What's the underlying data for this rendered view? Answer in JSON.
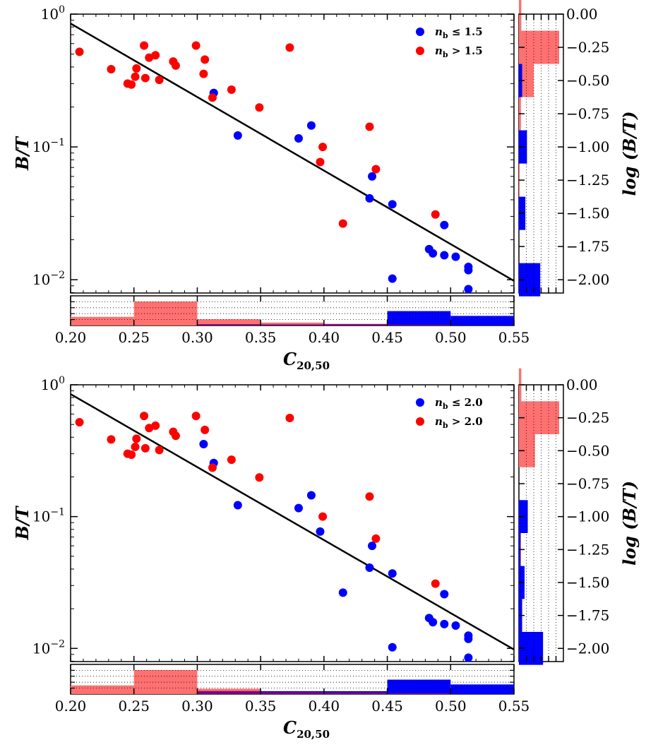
{
  "figure": {
    "description_none": null
  },
  "colors": {
    "blue": "#0000ff",
    "red": "#ff0000",
    "hist_red": "#ff7070",
    "hist_blue": "#0000ff",
    "hist_overlap": "#800080",
    "line": "#000000"
  },
  "chart_data": [
    {
      "type": "scatter",
      "xlabel": "C_{20,50}",
      "ylabel": "B/T",
      "right_label": "log (B/T)",
      "xlim": [
        0.2,
        0.55
      ],
      "ylim_log10": [
        -2.1,
        0.0
      ],
      "xticks": [
        "0.20",
        "0.25",
        "0.30",
        "0.35",
        "0.40",
        "0.45",
        "0.50",
        "0.55"
      ],
      "yticks": [
        {
          "base": "10",
          "exp": "0"
        },
        {
          "base": "10",
          "exp": "−1"
        },
        {
          "base": "10",
          "exp": "−2"
        }
      ],
      "right_ticks": [
        "0.00",
        "−0.25",
        "−0.50",
        "−0.75",
        "−1.00",
        "−1.25",
        "−1.50",
        "−1.75",
        "−2.00"
      ],
      "fit_line": {
        "x": [
          0.2,
          0.55
        ],
        "y": [
          0.85,
          0.0098
        ]
      },
      "legend": [
        {
          "name": "blue",
          "label": "n_b ≤ 1.5",
          "sym": "≤",
          "val": "1.5"
        },
        {
          "name": "red",
          "label": "n_b > 1.5",
          "sym": ">",
          "val": "1.5"
        }
      ],
      "series": [
        {
          "name": "blue",
          "color": "#0000ff",
          "points": [
            [
              0.313,
              0.255
            ],
            [
              0.332,
              0.122
            ],
            [
              0.38,
              0.116
            ],
            [
              0.39,
              0.145
            ],
            [
              0.438,
              0.06
            ],
            [
              0.436,
              0.041
            ],
            [
              0.454,
              0.037
            ],
            [
              0.454,
              0.0102
            ],
            [
              0.483,
              0.017
            ],
            [
              0.486,
              0.0158
            ],
            [
              0.495,
              0.0153
            ],
            [
              0.504,
              0.0149
            ],
            [
              0.495,
              0.0258
            ],
            [
              0.514,
              0.0125
            ],
            [
              0.514,
              0.0118
            ],
            [
              0.514,
              0.0085
            ]
          ]
        },
        {
          "name": "red",
          "color": "#ff0000",
          "points": [
            [
              0.207,
              0.52
            ],
            [
              0.232,
              0.385
            ],
            [
              0.245,
              0.3
            ],
            [
              0.248,
              0.295
            ],
            [
              0.251,
              0.338
            ],
            [
              0.252,
              0.39
            ],
            [
              0.258,
              0.58
            ],
            [
              0.259,
              0.33
            ],
            [
              0.262,
              0.47
            ],
            [
              0.267,
              0.49
            ],
            [
              0.27,
              0.32
            ],
            [
              0.281,
              0.44
            ],
            [
              0.283,
              0.41
            ],
            [
              0.299,
              0.58
            ],
            [
              0.305,
              0.355
            ],
            [
              0.306,
              0.455
            ],
            [
              0.312,
              0.235
            ],
            [
              0.327,
              0.27
            ],
            [
              0.349,
              0.198
            ],
            [
              0.373,
              0.56
            ],
            [
              0.397,
              0.077
            ],
            [
              0.399,
              0.1
            ],
            [
              0.415,
              0.0265
            ],
            [
              0.436,
              0.142
            ],
            [
              0.441,
              0.068
            ],
            [
              0.488,
              0.031
            ]
          ]
        }
      ],
      "hist_x": {
        "red": [
          {
            "bin": [
              0.2,
              0.25
            ],
            "v": 0.36
          },
          {
            "bin": [
              0.25,
              0.3
            ],
            "v": 1.0
          },
          {
            "bin": [
              0.3,
              0.35
            ],
            "v": 0.26
          },
          {
            "bin": [
              0.35,
              0.4
            ],
            "v": 0.12
          },
          {
            "bin": [
              0.4,
              0.45
            ],
            "v": 0.07
          },
          {
            "bin": [
              0.45,
              0.5
            ],
            "v": 0.03
          },
          {
            "bin": [
              0.5,
              0.55
            ],
            "v": 0.0
          }
        ],
        "blue": [
          {
            "bin": [
              0.2,
              0.25
            ],
            "v": 0.0
          },
          {
            "bin": [
              0.25,
              0.3
            ],
            "v": 0.0
          },
          {
            "bin": [
              0.3,
              0.35
            ],
            "v": 0.05
          },
          {
            "bin": [
              0.35,
              0.4
            ],
            "v": 0.04
          },
          {
            "bin": [
              0.4,
              0.45
            ],
            "v": 0.05
          },
          {
            "bin": [
              0.45,
              0.5
            ],
            "v": 0.6
          },
          {
            "bin": [
              0.5,
              0.55
            ],
            "v": 0.4
          }
        ]
      },
      "hist_y": {
        "red": [
          {
            "bin": [
              -0.125,
              0.125
            ],
            "v": 0.06
          },
          {
            "bin": [
              -0.375,
              -0.125
            ],
            "v": 1.0
          },
          {
            "bin": [
              -0.625,
              -0.375
            ],
            "v": 0.37
          },
          {
            "bin": [
              -0.875,
              -0.625
            ],
            "v": 0.05
          },
          {
            "bin": [
              -1.125,
              -0.875
            ],
            "v": 0.17
          },
          {
            "bin": [
              -1.375,
              -1.125
            ],
            "v": 0.02
          },
          {
            "bin": [
              -1.625,
              -1.375
            ],
            "v": 0.09
          },
          {
            "bin": [
              -1.875,
              -1.625
            ],
            "v": 0.0
          },
          {
            "bin": [
              -2.125,
              -1.875
            ],
            "v": 0.0
          }
        ],
        "blue": [
          {
            "bin": [
              -0.125,
              0.125
            ],
            "v": 0.0
          },
          {
            "bin": [
              -0.375,
              -0.125
            ],
            "v": 0.0
          },
          {
            "bin": [
              -0.625,
              -0.375
            ],
            "v": 0.08
          },
          {
            "bin": [
              -0.875,
              -0.625
            ],
            "v": 0.0
          },
          {
            "bin": [
              -1.125,
              -0.875
            ],
            "v": 0.2
          },
          {
            "bin": [
              -1.375,
              -1.125
            ],
            "v": 0.0
          },
          {
            "bin": [
              -1.625,
              -1.375
            ],
            "v": 0.16
          },
          {
            "bin": [
              -1.875,
              -1.625
            ],
            "v": 0.0
          },
          {
            "bin": [
              -2.125,
              -1.875
            ],
            "v": 0.53
          }
        ]
      }
    },
    {
      "type": "scatter",
      "xlabel": "C_{20,50}",
      "ylabel": "B/T",
      "right_label": "log (B/T)",
      "xlim": [
        0.2,
        0.55
      ],
      "ylim_log10": [
        -2.1,
        0.0
      ],
      "xticks": [
        "0.20",
        "0.25",
        "0.30",
        "0.35",
        "0.40",
        "0.45",
        "0.50",
        "0.55"
      ],
      "yticks": [
        {
          "base": "10",
          "exp": "0"
        },
        {
          "base": "10",
          "exp": "−1"
        },
        {
          "base": "10",
          "exp": "−2"
        }
      ],
      "right_ticks": [
        "0.00",
        "−0.25",
        "−0.50",
        "−0.75",
        "−1.00",
        "−1.25",
        "−1.50",
        "−1.75",
        "−2.00"
      ],
      "fit_line": {
        "x": [
          0.2,
          0.55
        ],
        "y": [
          0.85,
          0.0098
        ]
      },
      "legend": [
        {
          "name": "blue",
          "label": "n_b ≤ 2.0",
          "sym": "≤",
          "val": "2.0"
        },
        {
          "name": "red",
          "label": "n_b > 2.0",
          "sym": ">",
          "val": "2.0"
        }
      ],
      "series": [
        {
          "name": "blue",
          "color": "#0000ff",
          "points": [
            [
              0.305,
              0.355
            ],
            [
              0.313,
              0.255
            ],
            [
              0.332,
              0.122
            ],
            [
              0.38,
              0.116
            ],
            [
              0.39,
              0.145
            ],
            [
              0.397,
              0.077
            ],
            [
              0.415,
              0.0265
            ],
            [
              0.438,
              0.06
            ],
            [
              0.436,
              0.041
            ],
            [
              0.454,
              0.037
            ],
            [
              0.454,
              0.0102
            ],
            [
              0.483,
              0.017
            ],
            [
              0.486,
              0.0158
            ],
            [
              0.495,
              0.0153
            ],
            [
              0.504,
              0.0149
            ],
            [
              0.495,
              0.0258
            ],
            [
              0.514,
              0.0125
            ],
            [
              0.514,
              0.0118
            ],
            [
              0.514,
              0.0085
            ]
          ]
        },
        {
          "name": "red",
          "color": "#ff0000",
          "points": [
            [
              0.207,
              0.52
            ],
            [
              0.232,
              0.385
            ],
            [
              0.245,
              0.3
            ],
            [
              0.248,
              0.295
            ],
            [
              0.251,
              0.338
            ],
            [
              0.252,
              0.39
            ],
            [
              0.258,
              0.58
            ],
            [
              0.259,
              0.33
            ],
            [
              0.262,
              0.47
            ],
            [
              0.267,
              0.49
            ],
            [
              0.27,
              0.32
            ],
            [
              0.281,
              0.44
            ],
            [
              0.283,
              0.41
            ],
            [
              0.299,
              0.58
            ],
            [
              0.306,
              0.455
            ],
            [
              0.312,
              0.235
            ],
            [
              0.327,
              0.27
            ],
            [
              0.349,
              0.198
            ],
            [
              0.373,
              0.56
            ],
            [
              0.399,
              0.1
            ],
            [
              0.436,
              0.142
            ],
            [
              0.441,
              0.068
            ],
            [
              0.488,
              0.031
            ]
          ]
        }
      ],
      "hist_x": {
        "red": [
          {
            "bin": [
              0.2,
              0.25
            ],
            "v": 0.36
          },
          {
            "bin": [
              0.25,
              0.3
            ],
            "v": 1.0
          },
          {
            "bin": [
              0.3,
              0.35
            ],
            "v": 0.22
          },
          {
            "bin": [
              0.35,
              0.4
            ],
            "v": 0.08
          },
          {
            "bin": [
              0.4,
              0.45
            ],
            "v": 0.07
          },
          {
            "bin": [
              0.45,
              0.5
            ],
            "v": 0.03
          },
          {
            "bin": [
              0.5,
              0.55
            ],
            "v": 0.0
          }
        ],
        "blue": [
          {
            "bin": [
              0.2,
              0.25
            ],
            "v": 0.0
          },
          {
            "bin": [
              0.25,
              0.3
            ],
            "v": 0.0
          },
          {
            "bin": [
              0.3,
              0.35
            ],
            "v": 0.12
          },
          {
            "bin": [
              0.35,
              0.4
            ],
            "v": 0.12
          },
          {
            "bin": [
              0.4,
              0.45
            ],
            "v": 0.12
          },
          {
            "bin": [
              0.45,
              0.5
            ],
            "v": 0.6
          },
          {
            "bin": [
              0.5,
              0.55
            ],
            "v": 0.4
          }
        ]
      },
      "hist_y": {
        "red": [
          {
            "bin": [
              -0.125,
              0.125
            ],
            "v": 0.06
          },
          {
            "bin": [
              -0.375,
              -0.125
            ],
            "v": 1.0
          },
          {
            "bin": [
              -0.625,
              -0.375
            ],
            "v": 0.4
          },
          {
            "bin": [
              -0.875,
              -0.625
            ],
            "v": 0.0
          },
          {
            "bin": [
              -1.125,
              -0.875
            ],
            "v": 0.1
          },
          {
            "bin": [
              -1.375,
              -1.125
            ],
            "v": 0.05
          },
          {
            "bin": [
              -1.625,
              -1.375
            ],
            "v": 0.08
          },
          {
            "bin": [
              -1.875,
              -1.625
            ],
            "v": 0.0
          },
          {
            "bin": [
              -2.125,
              -1.875
            ],
            "v": 0.0
          }
        ],
        "blue": [
          {
            "bin": [
              -0.125,
              0.125
            ],
            "v": 0.0
          },
          {
            "bin": [
              -0.375,
              -0.125
            ],
            "v": 0.0
          },
          {
            "bin": [
              -0.625,
              -0.375
            ],
            "v": 0.0
          },
          {
            "bin": [
              -0.875,
              -0.625
            ],
            "v": 0.0
          },
          {
            "bin": [
              -1.125,
              -0.875
            ],
            "v": 0.22
          },
          {
            "bin": [
              -1.375,
              -1.125
            ],
            "v": 0.04
          },
          {
            "bin": [
              -1.625,
              -1.375
            ],
            "v": 0.14
          },
          {
            "bin": [
              -1.875,
              -1.625
            ],
            "v": 0.08
          },
          {
            "bin": [
              -2.125,
              -1.875
            ],
            "v": 0.6
          }
        ]
      }
    }
  ]
}
